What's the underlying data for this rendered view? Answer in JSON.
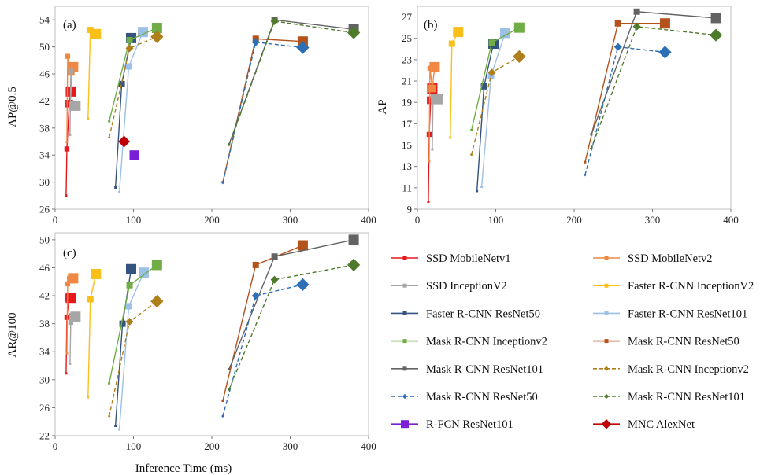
{
  "chart_data": {
    "type": "line",
    "xlabel": "Inference Time (ms)",
    "styles": {
      "ssd_mnv1": {
        "color": "#e8171b",
        "dash": false,
        "marker": "square",
        "legend": "SSD MobileNetv1"
      },
      "ssd_mnv2": {
        "color": "#ee8843",
        "dash": false,
        "marker": "square",
        "legend": "SSD MobileNetv2"
      },
      "ssd_inc": {
        "color": "#a6a6a6",
        "dash": false,
        "marker": "square",
        "legend": "SSD InceptionV2"
      },
      "frcnn_inc": {
        "color": "#fbbf1a",
        "dash": false,
        "marker": "square",
        "legend": "Faster R-CNN InceptionV2"
      },
      "frcnn_r50": {
        "color": "#34537f",
        "dash": false,
        "marker": "square",
        "legend": "Faster R-CNN ResNet50"
      },
      "frcnn_r101": {
        "color": "#9cc0e6",
        "dash": false,
        "marker": "square",
        "legend": "Faster R-CNN ResNet101"
      },
      "mrcnn_inc": {
        "color": "#70ad47",
        "dash": false,
        "marker": "square",
        "legend": "Mask R-CNN Inceptionv2"
      },
      "mrcnn_r50": {
        "color": "#b4521b",
        "dash": false,
        "marker": "square",
        "legend": "Mask R-CNN ResNet50"
      },
      "mrcnn_r101": {
        "color": "#636363",
        "dash": false,
        "marker": "square",
        "legend": "Mask R-CNN ResNet101"
      },
      "mrcnn_inc_d": {
        "color": "#ae7f1b",
        "dash": true,
        "marker": "diamond",
        "legend": "Mask R-CNN Inceptionv2"
      },
      "mrcnn_r50_d": {
        "color": "#2c6fb5",
        "dash": true,
        "marker": "diamond",
        "legend": "Mask R-CNN ResNet50"
      },
      "mrcnn_r101_d": {
        "color": "#4e7a2c",
        "dash": true,
        "marker": "diamond",
        "legend": "Mask R-CNN ResNet101"
      },
      "rfcn": {
        "color": "#7b1ed8",
        "dash": false,
        "marker": "square",
        "legend": "R-FCN ResNet101"
      },
      "mnc": {
        "color": "#c00000",
        "dash": false,
        "marker": "diamond",
        "legend": "MNC AlexNet"
      }
    },
    "legend_order": [
      "ssd_mnv1",
      "ssd_mnv2",
      "ssd_inc",
      "frcnn_inc",
      "frcnn_r50",
      "frcnn_r101",
      "mrcnn_inc",
      "mrcnn_r50",
      "mrcnn_r101",
      "mrcnn_inc_d",
      "mrcnn_r50_d",
      "mrcnn_r101_d",
      "rfcn",
      "mnc"
    ],
    "panels": [
      {
        "label": "(a)",
        "ylabel": "AP@0.5",
        "xlim": [
          0,
          400
        ],
        "ylim": [
          26,
          56
        ],
        "xticks": [
          "0",
          "100",
          "200",
          "300",
          "400"
        ],
        "yticks": [
          "26",
          "30",
          "34",
          "38",
          "42",
          "46",
          "50",
          "54"
        ],
        "series": [
          {
            "key": "ssd_mnv1",
            "x": [
              14,
              15,
              18,
              20
            ],
            "y": [
              28,
              34.9,
              41.6,
              43.4
            ]
          },
          {
            "key": "ssd_mnv2",
            "x": [
              15,
              16,
              20,
              23
            ],
            "y": [
              35.9,
              48.6,
              46.3,
              47
            ]
          },
          {
            "key": "ssd_inc",
            "x": [
              19,
              20,
              22,
              26
            ],
            "y": [
              37,
              46.4,
              41.3,
              41.3
            ]
          },
          {
            "key": "frcnn_inc",
            "x": [
              42,
              45,
              52
            ],
            "y": [
              39.4,
              52.5,
              51.9
            ]
          },
          {
            "key": "frcnn_r50",
            "x": [
              77,
              85,
              97
            ],
            "y": [
              29.2,
              44.5,
              51.3
            ]
          },
          {
            "key": "frcnn_r101",
            "x": [
              82,
              94,
              112
            ],
            "y": [
              28.5,
              47.1,
              52.2
            ]
          },
          {
            "key": "mrcnn_inc",
            "x": [
              69,
              95,
              130
            ],
            "y": [
              39,
              51,
              52.8
            ]
          },
          {
            "key": "mrcnn_r50",
            "x": [
              214,
              256,
              316
            ],
            "y": [
              30,
              51.2,
              50.8
            ]
          },
          {
            "key": "mrcnn_r101",
            "x": [
              222,
              280,
              381
            ],
            "y": [
              35.6,
              54,
              52.6
            ]
          },
          {
            "key": "mrcnn_inc_d",
            "x": [
              69,
              95,
              130
            ],
            "y": [
              36.6,
              49.8,
              51.5
            ]
          },
          {
            "key": "mrcnn_r50_d",
            "x": [
              214,
              256,
              316
            ],
            "y": [
              29.9,
              50.7,
              49.9
            ]
          },
          {
            "key": "mrcnn_r101_d",
            "x": [
              222,
              280,
              381
            ],
            "y": [
              35.5,
              53.8,
              52.1
            ]
          },
          {
            "key": "rfcn",
            "x": [
              101
            ],
            "y": [
              34
            ]
          },
          {
            "key": "mnc",
            "x": [
              88
            ],
            "y": [
              36
            ]
          }
        ]
      },
      {
        "label": "(b)",
        "ylabel": "AP",
        "xlim": [
          0,
          400
        ],
        "ylim": [
          9,
          28
        ],
        "xticks": [
          "0",
          "100",
          "200",
          "300",
          "400"
        ],
        "yticks": [
          "9",
          "11",
          "13",
          "15",
          "17",
          "19",
          "21",
          "23",
          "25",
          "27"
        ],
        "series": [
          {
            "key": "ssd_mnv1",
            "x": [
              14,
              15,
              17,
              19
            ],
            "y": [
              9.7,
              16,
              19.2,
              20.3
            ]
          },
          {
            "key": "ssd_mnv2",
            "x": [
              15,
              16,
              19,
              22
            ],
            "y": [
              13.5,
              22.2,
              20.3,
              22.3
            ]
          },
          {
            "key": "ssd_inc",
            "x": [
              19,
              20,
              22,
              26
            ],
            "y": [
              14.6,
              19.5,
              19.2,
              19.3
            ]
          },
          {
            "key": "frcnn_inc",
            "x": [
              42,
              44,
              52
            ],
            "y": [
              15.7,
              24.5,
              25.6
            ]
          },
          {
            "key": "frcnn_r50",
            "x": [
              76,
              85,
              97
            ],
            "y": [
              10.7,
              20.5,
              24.5
            ]
          },
          {
            "key": "frcnn_r101",
            "x": [
              82,
              94,
              112
            ],
            "y": [
              11.1,
              21.5,
              25.5
            ]
          },
          {
            "key": "mrcnn_inc",
            "x": [
              69,
              95,
              130
            ],
            "y": [
              16.4,
              24.6,
              26
            ]
          },
          {
            "key": "mrcnn_r50",
            "x": [
              214,
              256,
              316
            ],
            "y": [
              13.4,
              26.4,
              26.4
            ]
          },
          {
            "key": "mrcnn_r101",
            "x": [
              222,
              280,
              381
            ],
            "y": [
              16,
              27.5,
              26.9
            ]
          },
          {
            "key": "mrcnn_inc_d",
            "x": [
              69,
              95,
              130
            ],
            "y": [
              14.1,
              21.8,
              23.3
            ]
          },
          {
            "key": "mrcnn_r50_d",
            "x": [
              214,
              256,
              316
            ],
            "y": [
              12.2,
              24.2,
              23.7
            ]
          },
          {
            "key": "mrcnn_r101_d",
            "x": [
              222,
              280,
              381
            ],
            "y": [
              14.7,
              26.1,
              25.3
            ]
          }
        ]
      },
      {
        "label": "(c)",
        "ylabel": "AR@100",
        "xlim": [
          0,
          400
        ],
        "ylim": [
          22,
          51
        ],
        "xticks": [
          "0",
          "100",
          "200",
          "300",
          "400"
        ],
        "yticks": [
          "22",
          "26",
          "30",
          "34",
          "38",
          "42",
          "46",
          "50"
        ],
        "series": [
          {
            "key": "ssd_mnv1",
            "x": [
              14,
              15,
              18,
              20
            ],
            "y": [
              30.9,
              38.9,
              41.7,
              41.7
            ]
          },
          {
            "key": "ssd_mnv2",
            "x": [
              15,
              16,
              20,
              23
            ],
            "y": [
              33.8,
              43.7,
              44.3,
              44.5
            ]
          },
          {
            "key": "ssd_inc",
            "x": [
              19,
              20,
              22,
              26
            ],
            "y": [
              32.3,
              38.2,
              39,
              39
            ]
          },
          {
            "key": "frcnn_inc",
            "x": [
              42,
              45,
              52
            ],
            "y": [
              27.5,
              41.5,
              45.1
            ]
          },
          {
            "key": "frcnn_r50",
            "x": [
              77,
              86,
              97
            ],
            "y": [
              23.4,
              38,
              45.8
            ]
          },
          {
            "key": "frcnn_r101",
            "x": [
              82,
              94,
              113
            ],
            "y": [
              22.9,
              40.5,
              45.3
            ]
          },
          {
            "key": "mrcnn_inc",
            "x": [
              69,
              95,
              130
            ],
            "y": [
              29.5,
              43.5,
              46.4
            ]
          },
          {
            "key": "mrcnn_r50",
            "x": [
              214,
              256,
              316
            ],
            "y": [
              27,
              46.4,
              49.2
            ]
          },
          {
            "key": "mrcnn_r101",
            "x": [
              222,
              280,
              381
            ],
            "y": [
              31.5,
              47.6,
              50
            ]
          },
          {
            "key": "mrcnn_inc_d",
            "x": [
              69,
              95,
              130
            ],
            "y": [
              24.8,
              38.3,
              41.2
            ]
          },
          {
            "key": "mrcnn_r50_d",
            "x": [
              214,
              256,
              316
            ],
            "y": [
              24.8,
              42,
              43.6
            ]
          },
          {
            "key": "mrcnn_r101_d",
            "x": [
              222,
              280,
              381
            ],
            "y": [
              28.6,
              44.3,
              46.4
            ]
          }
        ]
      }
    ]
  }
}
